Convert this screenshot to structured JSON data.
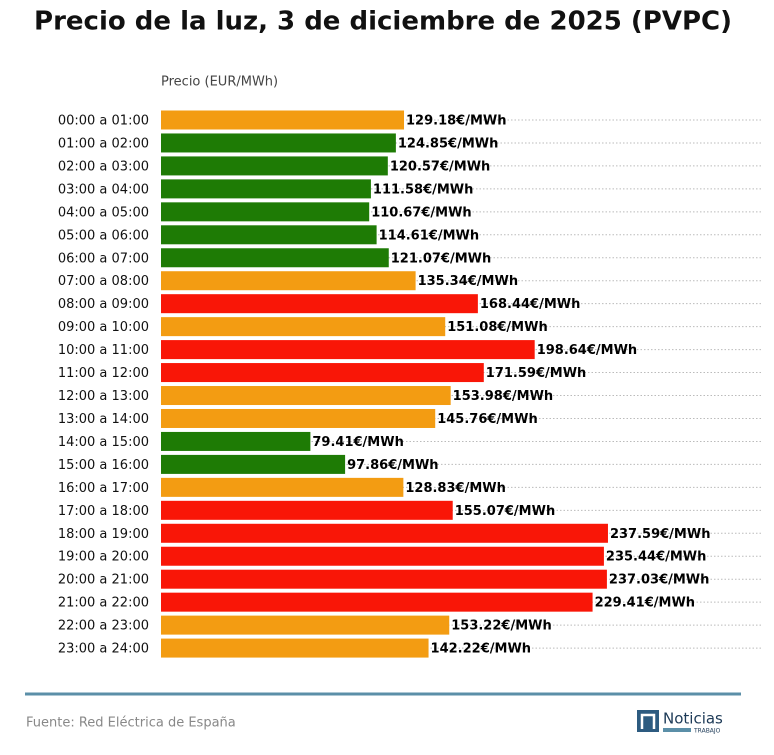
{
  "chart_data": {
    "type": "bar",
    "orientation": "horizontal",
    "title": "Precio de la luz, 3 de diciembre de 2025 (PVPC)",
    "xlabel": "Precio (EUR/MWh)",
    "categories": [
      "00:00 a 01:00",
      "01:00 a 02:00",
      "02:00 a 03:00",
      "03:00 a 04:00",
      "04:00 a 05:00",
      "05:00 a 06:00",
      "06:00 a 07:00",
      "07:00 a 08:00",
      "08:00 a 09:00",
      "09:00 a 10:00",
      "10:00 a 11:00",
      "11:00 a 12:00",
      "12:00 a 13:00",
      "13:00 a 14:00",
      "14:00 a 15:00",
      "15:00 a 16:00",
      "16:00 a 17:00",
      "17:00 a 18:00",
      "18:00 a 19:00",
      "19:00 a 20:00",
      "20:00 a 21:00",
      "21:00 a 22:00",
      "22:00 a 23:00",
      "23:00 a 24:00"
    ],
    "values": [
      129.18,
      124.85,
      120.57,
      111.58,
      110.67,
      114.61,
      121.07,
      135.34,
      168.44,
      151.08,
      198.64,
      171.59,
      153.98,
      145.76,
      79.41,
      97.86,
      128.83,
      155.07,
      237.59,
      235.44,
      237.03,
      229.41,
      153.22,
      142.22
    ],
    "value_labels": [
      "129.18€/MWh",
      "124.85€/MWh",
      "120.57€/MWh",
      "111.58€/MWh",
      "110.67€/MWh",
      "114.61€/MWh",
      "121.07€/MWh",
      "135.34€/MWh",
      "168.44€/MWh",
      "151.08€/MWh",
      "198.64€/MWh",
      "171.59€/MWh",
      "153.98€/MWh",
      "145.76€/MWh",
      "79.41€/MWh",
      "97.86€/MWh",
      "128.83€/MWh",
      "155.07€/MWh",
      "237.59€/MWh",
      "235.44€/MWh",
      "237.03€/MWh",
      "229.41€/MWh",
      "153.22€/MWh",
      "142.22€/MWh"
    ],
    "colors": [
      "#f39c12",
      "#1e7b05",
      "#1e7b05",
      "#1e7b05",
      "#1e7b05",
      "#1e7b05",
      "#1e7b05",
      "#f39c12",
      "#f91607",
      "#f39c12",
      "#f91607",
      "#f91607",
      "#f39c12",
      "#f39c12",
      "#1e7b05",
      "#1e7b05",
      "#f39c12",
      "#f91607",
      "#f91607",
      "#f91607",
      "#f91607",
      "#f91607",
      "#f39c12",
      "#f39c12"
    ],
    "xlim": [
      0,
      320
    ],
    "grid": true,
    "source": "Fuente: Red Eléctrica de España",
    "logo": {
      "name": "Noticias",
      "tag": "TRABAJO"
    }
  }
}
